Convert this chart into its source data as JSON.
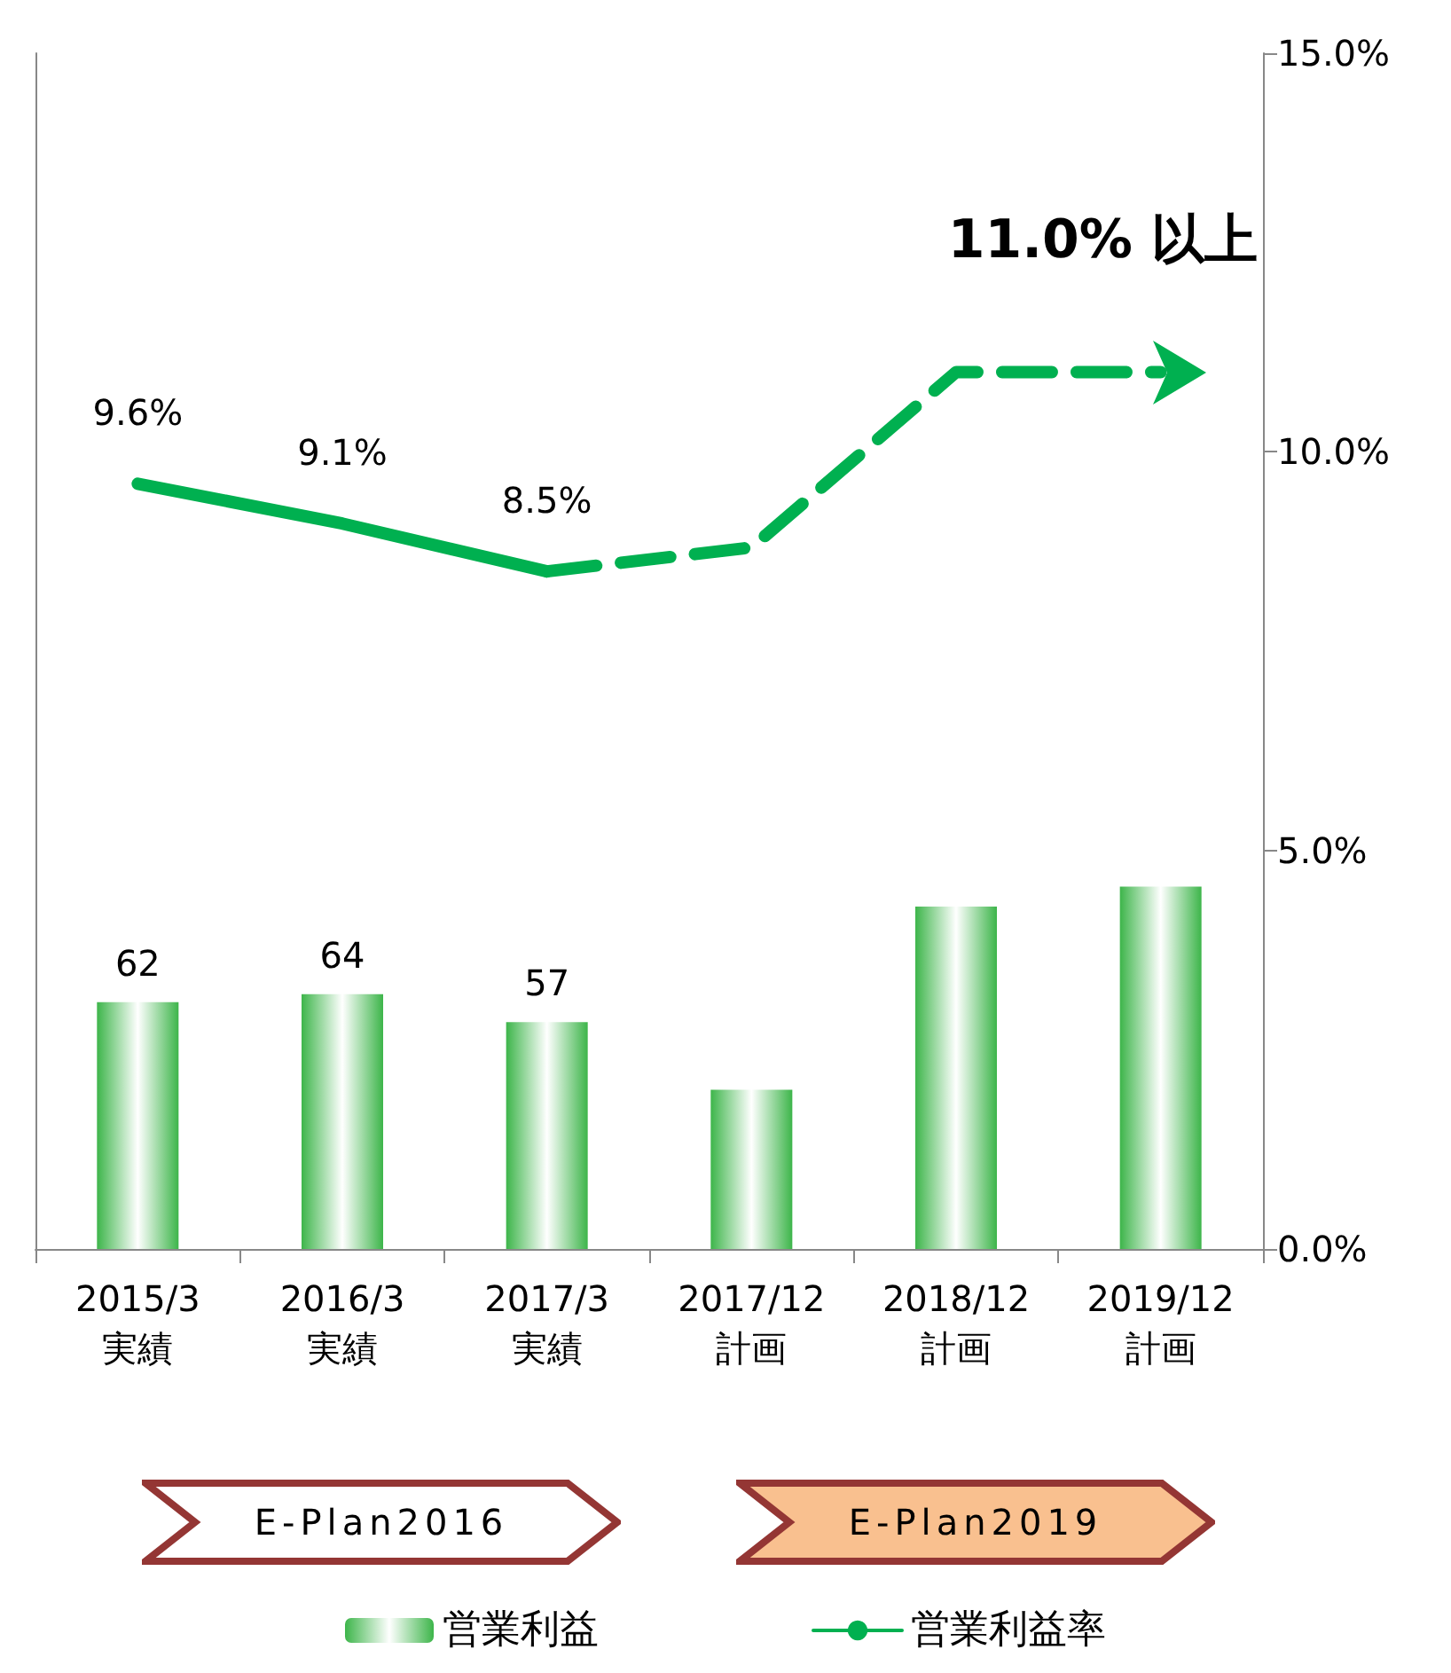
{
  "chart_data": {
    "type": "bar",
    "categories": [
      "2015/3\n実績",
      "2016/3\n実績",
      "2017/3\n実績",
      "2017/12\n計画",
      "2018/12\n計画",
      "2019/12\n計画"
    ],
    "series": [
      {
        "name": "営業利益",
        "axis": "y2",
        "color": "#3db54a",
        "values": [
          62,
          64,
          57,
          40,
          86,
          91
        ],
        "value_labels": [
          "62",
          "64",
          "57",
          null,
          null,
          null
        ]
      },
      {
        "name": "営業利益率",
        "type": "line",
        "color": "#00b050",
        "line_style": "solid",
        "values": [
          9.6,
          9.1,
          8.5,
          null,
          null,
          null
        ],
        "value_labels": [
          "9.6%",
          "9.1%",
          "8.5%",
          null,
          null,
          null
        ]
      },
      {
        "type": "line",
        "color": "#00b050",
        "line_style": "dashed",
        "values": [
          null,
          null,
          8.5,
          8.8,
          11.0,
          11.0
        ]
      }
    ],
    "ylim": [
      0,
      15
    ],
    "yticks": [
      {
        "value": 0,
        "label": "0.0%"
      },
      {
        "value": 5,
        "label": "5.0%"
      },
      {
        "value": 10,
        "label": "10.0%"
      },
      {
        "value": 15,
        "label": "15.0%"
      }
    ],
    "annotations": [
      "11.0% 以上",
      "E-Plan2016",
      "E-Plan2019"
    ],
    "legend": "bottom",
    "grid": false
  }
}
